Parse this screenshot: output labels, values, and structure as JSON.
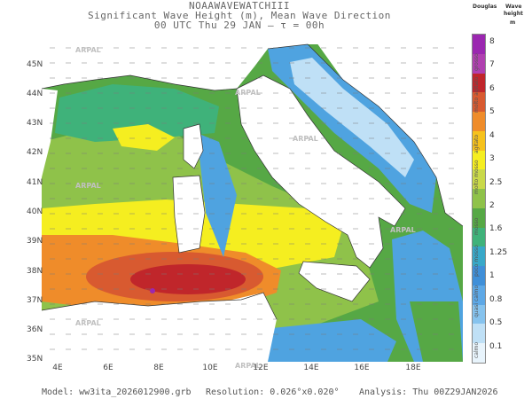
{
  "header": {
    "line1": "NOAAWAVEWATCHIII",
    "line2": "Significant Wave Height (m), Mean Wave Direction",
    "line3": "00 UTC Thu 29 JAN   –   τ = 00h"
  },
  "axes": {
    "lat_labels": [
      "45N",
      "44N",
      "43N",
      "42N",
      "41N",
      "40N",
      "39N",
      "38N",
      "37N",
      "36N",
      "35N"
    ],
    "lon_labels": [
      "4E",
      "6E",
      "8E",
      "10E",
      "12E",
      "14E",
      "16E",
      "18E"
    ]
  },
  "watermark": "ARPAL",
  "legend": {
    "head_left": "Douglas",
    "head_right_1": "Wave",
    "head_right_2": "height",
    "unit": "m",
    "ticks": [
      "8",
      "7",
      "6",
      "5",
      "4",
      "3",
      "2.5",
      "2",
      "1.6",
      "1.25",
      "1",
      "0.8",
      "0.5",
      "0.1"
    ],
    "words": [
      "grosso",
      "molto agitato",
      "agitato",
      "molto mosso",
      "mosso",
      "poco mosso",
      "quasi calmo",
      "calmo"
    ],
    "colors": [
      "#9b27b0",
      "#b040b0",
      "#c0262b",
      "#d85a30",
      "#ef8c2a",
      "#f6c21c",
      "#f5ee20",
      "#c9d94a",
      "#8fc24a",
      "#56a845",
      "#3fb27a",
      "#38a8c8",
      "#3f8fd8",
      "#5da8e6",
      "#86c3ee",
      "#bfe0f6",
      "#e8f4fc"
    ]
  },
  "footer": {
    "model": "Model:  ww3ita_2026012900.grb",
    "resolution": "Resolution: 0.026°x0.020°",
    "analysis": "Analysis: Thu  00Z29JAN2026"
  },
  "map_colors": {
    "land": "#ffffff",
    "sea_light": "#bfe0f6",
    "sea_blue": "#4fa3e0",
    "sea_teal": "#3fb27a",
    "sea_green": "#56a845",
    "sea_lime": "#8fc24a",
    "sea_yellow": "#f5ee20",
    "sea_orange": "#ef8c2a",
    "sea_red": "#d85a30",
    "sea_darkred": "#c0262b",
    "sea_purple": "#9b27b0"
  }
}
